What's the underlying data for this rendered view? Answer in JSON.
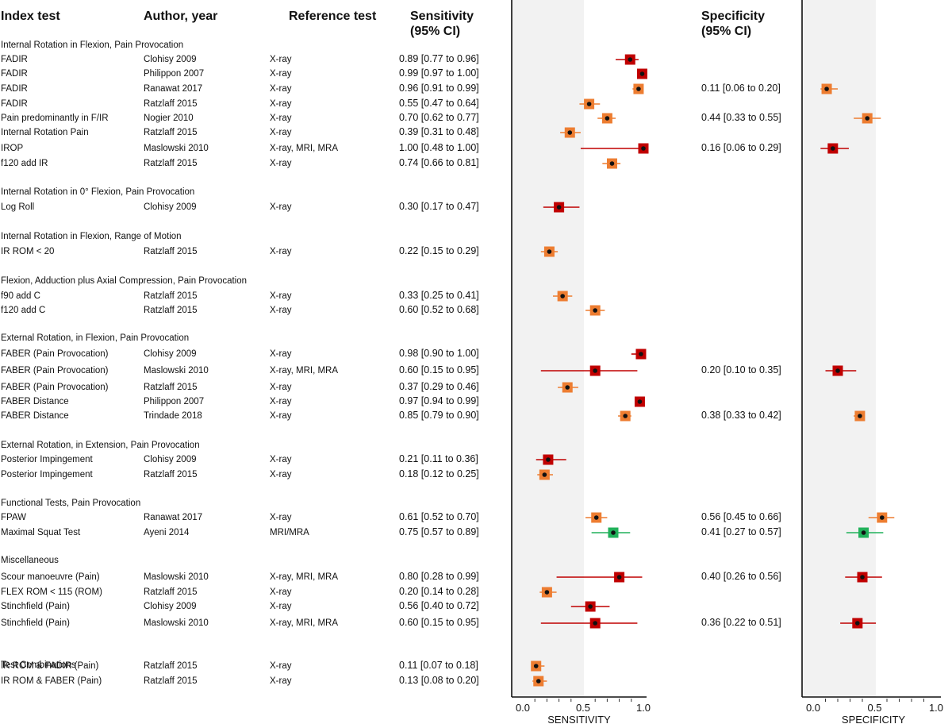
{
  "headers": {
    "index_test": "Index test",
    "author_year": "Author, year",
    "reference_test": "Reference test",
    "sensitivity": [
      "Sensitivity",
      "(95% CI)"
    ],
    "specificity": [
      "Specificity",
      "(95% CI)"
    ]
  },
  "axes": {
    "sensitivity": {
      "label": "SENSITIVITY",
      "range": [
        0,
        1
      ],
      "ticks": [
        "0.0",
        "0.5",
        "1.0"
      ]
    },
    "specificity": {
      "label": "SPECIFICITY",
      "range": [
        0,
        1
      ],
      "ticks": [
        "0.0",
        "0.5",
        "1.0"
      ]
    }
  },
  "colors": {
    "red": "#c00000",
    "orange": "#ed7d31",
    "green": "#21b15a",
    "band": "#f2f2f2"
  },
  "chart_data": {
    "type": "forest",
    "groups": [
      {
        "title": "Internal Rotation in Flexion, Pain Provocation",
        "rows": [
          {
            "test": "FADIR",
            "author": "Clohisy 2009",
            "ref": "X-ray",
            "sens_text": "0.89 [0.77 to 0.96]",
            "sens": 0.89,
            "sens_lo": 0.77,
            "sens_hi": 0.96,
            "spec_text": "",
            "color": "red"
          },
          {
            "test": "FADIR",
            "author": "Philippon 2007",
            "ref": "X-ray",
            "sens_text": "0.99 [0.97 to 1.00]",
            "sens": 0.99,
            "sens_lo": 0.97,
            "sens_hi": 1.0,
            "spec_text": "",
            "color": "red"
          },
          {
            "test": "FADIR",
            "author": "Ranawat 2017",
            "ref": "X-ray",
            "sens_text": "0.96 [0.91 to 0.99]",
            "sens": 0.96,
            "sens_lo": 0.91,
            "sens_hi": 0.99,
            "spec_text": "0.11 [0.06 to 0.20]",
            "spec": 0.11,
            "spec_lo": 0.06,
            "spec_hi": 0.2,
            "color": "orange"
          },
          {
            "test": "FADIR",
            "author": "Ratzlaff 2015",
            "ref": "X-ray",
            "sens_text": "0.55 [0.47 to 0.64]",
            "sens": 0.55,
            "sens_lo": 0.47,
            "sens_hi": 0.64,
            "spec_text": "",
            "color": "orange"
          },
          {
            "test": "Pain predominantly in F/IR",
            "author": "Nogier 2010",
            "ref": "X-ray",
            "sens_text": "0.70 [0.62 to 0.77]",
            "sens": 0.7,
            "sens_lo": 0.62,
            "sens_hi": 0.77,
            "spec_text": "0.44 [0.33 to 0.55]",
            "spec": 0.44,
            "spec_lo": 0.33,
            "spec_hi": 0.55,
            "color": "orange"
          },
          {
            "test": "Internal Rotation Pain",
            "author": "Ratzlaff 2015",
            "ref": "X-ray",
            "sens_text": "0.39 [0.31 to 0.48]",
            "sens": 0.39,
            "sens_lo": 0.31,
            "sens_hi": 0.48,
            "spec_text": "",
            "color": "orange"
          },
          {
            "test": "IROP",
            "author": "Maslowski 2010",
            "ref": "X-ray, MRI, MRA",
            "sens_text": "1.00 [0.48 to 1.00]",
            "sens": 1.0,
            "sens_lo": 0.48,
            "sens_hi": 1.0,
            "spec_text": "0.16 [0.06 to 0.29]",
            "spec": 0.16,
            "spec_lo": 0.06,
            "spec_hi": 0.29,
            "color": "red"
          },
          {
            "test": "f120 add IR",
            "author": "Ratzlaff 2015",
            "ref": "X-ray",
            "sens_text": "0.74 [0.66 to 0.81]",
            "sens": 0.74,
            "sens_lo": 0.66,
            "sens_hi": 0.81,
            "spec_text": "",
            "color": "orange"
          }
        ]
      },
      {
        "title": "Internal Rotation in 0° Flexion, Pain Provocation",
        "rows": [
          {
            "test": "Log Roll",
            "author": "Clohisy 2009",
            "ref": "X-ray",
            "sens_text": "0.30 [0.17 to 0.47]",
            "sens": 0.3,
            "sens_lo": 0.17,
            "sens_hi": 0.47,
            "spec_text": "",
            "color": "red"
          }
        ]
      },
      {
        "title": "Internal Rotation in Flexion, Range of Motion",
        "rows": [
          {
            "test": "IR ROM < 20",
            "author": "Ratzlaff 2015",
            "ref": "X-ray",
            "sens_text": "0.22 [0.15 to 0.29]",
            "sens": 0.22,
            "sens_lo": 0.15,
            "sens_hi": 0.29,
            "spec_text": "",
            "color": "orange"
          }
        ]
      },
      {
        "title": "Flexion, Adduction plus Axial Compression, Pain Provocation",
        "rows": [
          {
            "test": "f90 add C",
            "author": "Ratzlaff 2015",
            "ref": "X-ray",
            "sens_text": "0.33 [0.25 to 0.41]",
            "sens": 0.33,
            "sens_lo": 0.25,
            "sens_hi": 0.41,
            "spec_text": "",
            "color": "orange"
          },
          {
            "test": "f120 add C",
            "author": "Ratzlaff 2015",
            "ref": "X-ray",
            "sens_text": "0.60 [0.52 to 0.68]",
            "sens": 0.6,
            "sens_lo": 0.52,
            "sens_hi": 0.68,
            "spec_text": "",
            "color": "orange"
          }
        ]
      },
      {
        "title": "External Rotation, in Flexion, Pain Provocation",
        "rows": [
          {
            "test": "FABER (Pain Provocation)",
            "author": "Clohisy 2009",
            "ref": "X-ray",
            "sens_text": "0.98 [0.90 to 1.00]",
            "sens": 0.98,
            "sens_lo": 0.9,
            "sens_hi": 1.0,
            "spec_text": "",
            "color": "red"
          },
          {
            "test": "FABER (Pain Provocation)",
            "author": "Maslowski 2010",
            "ref": "X-ray, MRI, MRA",
            "sens_text": "0.60 [0.15 to 0.95]",
            "sens": 0.6,
            "sens_lo": 0.15,
            "sens_hi": 0.95,
            "spec_text": "0.20 [0.10 to 0.35]",
            "spec": 0.2,
            "spec_lo": 0.1,
            "spec_hi": 0.35,
            "color": "red"
          },
          {
            "test": "FABER (Pain Provocation)",
            "author": "Ratzlaff 2015",
            "ref": "X-ray",
            "sens_text": "0.37 [0.29 to 0.46]",
            "sens": 0.37,
            "sens_lo": 0.29,
            "sens_hi": 0.46,
            "spec_text": "",
            "color": "orange"
          },
          {
            "test": "FABER Distance",
            "author": "Philippon 2007",
            "ref": "X-ray",
            "sens_text": "0.97 [0.94 to 0.99]",
            "sens": 0.97,
            "sens_lo": 0.94,
            "sens_hi": 0.99,
            "spec_text": "",
            "color": "red"
          },
          {
            "test": "FABER Distance",
            "author": "Trindade 2018",
            "ref": "X-ray",
            "sens_text": "0.85 [0.79 to 0.90]",
            "sens": 0.85,
            "sens_lo": 0.79,
            "sens_hi": 0.9,
            "spec_text": "0.38 [0.33 to 0.42]",
            "spec": 0.38,
            "spec_lo": 0.33,
            "spec_hi": 0.42,
            "color": "orange"
          }
        ]
      },
      {
        "title": "External Rotation, in Extension, Pain Provocation",
        "rows": [
          {
            "test": "Posterior Impingement",
            "author": "Clohisy 2009",
            "ref": "X-ray",
            "sens_text": "0.21 [0.11 to 0.36]",
            "sens": 0.21,
            "sens_lo": 0.11,
            "sens_hi": 0.36,
            "spec_text": "",
            "color": "red"
          },
          {
            "test": "Posterior Impingement",
            "author": "Ratzlaff 2015",
            "ref": "X-ray",
            "sens_text": "0.18 [0.12 to 0.25]",
            "sens": 0.18,
            "sens_lo": 0.12,
            "sens_hi": 0.25,
            "spec_text": "",
            "color": "orange"
          }
        ]
      },
      {
        "title": "Functional Tests, Pain Provocation",
        "rows": [
          {
            "test": "FPAW",
            "author": "Ranawat 2017",
            "ref": "X-ray",
            "sens_text": "0.61 [0.52 to 0.70]",
            "sens": 0.61,
            "sens_lo": 0.52,
            "sens_hi": 0.7,
            "spec_text": "0.56 [0.45 to 0.66]",
            "spec": 0.56,
            "spec_lo": 0.45,
            "spec_hi": 0.66,
            "color": "orange"
          },
          {
            "test": "Maximal Squat Test",
            "author": "Ayeni 2014",
            "ref": "MRI/MRA",
            "sens_text": "0.75 [0.57 to 0.89]",
            "sens": 0.75,
            "sens_lo": 0.57,
            "sens_hi": 0.89,
            "spec_text": "0.41 [0.27 to 0.57]",
            "spec": 0.41,
            "spec_lo": 0.27,
            "spec_hi": 0.57,
            "color": "green"
          }
        ]
      },
      {
        "title": "Miscellaneous",
        "rows": [
          {
            "test": "Scour manoeuvre (Pain)",
            "author": "Maslowski 2010",
            "ref": "X-ray, MRI, MRA",
            "sens_text": "0.80 [0.28 to 0.99]",
            "sens": 0.8,
            "sens_lo": 0.28,
            "sens_hi": 0.99,
            "spec_text": "0.40 [0.26 to 0.56]",
            "spec": 0.4,
            "spec_lo": 0.26,
            "spec_hi": 0.56,
            "color": "red"
          },
          {
            "test": "FLEX ROM < 115 (ROM)",
            "author": "Ratzlaff 2015",
            "ref": "X-ray",
            "sens_text": "0.20 [0.14 to 0.28]",
            "sens": 0.2,
            "sens_lo": 0.14,
            "sens_hi": 0.28,
            "spec_text": "",
            "color": "orange"
          },
          {
            "test": "Stinchfield (Pain)",
            "author": "Clohisy 2009",
            "ref": "X-ray",
            "sens_text": "0.56 [0.40 to 0.72]",
            "sens": 0.56,
            "sens_lo": 0.4,
            "sens_hi": 0.72,
            "spec_text": "",
            "color": "red"
          },
          {
            "test": "Stinchfield (Pain)",
            "author": "Maslowski 2010",
            "ref": "X-ray, MRI, MRA",
            "sens_text": "0.60 [0.15 to 0.95]",
            "sens": 0.6,
            "sens_lo": 0.15,
            "sens_hi": 0.95,
            "spec_text": "0.36 [0.22 to 0.51]",
            "spec": 0.36,
            "spec_lo": 0.22,
            "spec_hi": 0.51,
            "color": "red"
          }
        ]
      },
      {
        "title": "Test Combinations",
        "rows": [
          {
            "test": "IR ROM & FADIR (Pain)",
            "author": "Ratzlaff 2015",
            "ref": "X-ray",
            "sens_text": "0.11 [0.07 to 0.18]",
            "sens": 0.11,
            "sens_lo": 0.07,
            "sens_hi": 0.18,
            "spec_text": "",
            "color": "orange"
          },
          {
            "test": "IR ROM & FABER (Pain)",
            "author": "Ratzlaff 2015",
            "ref": "X-ray",
            "sens_text": "0.13 [0.08 to 0.20]",
            "sens": 0.13,
            "sens_lo": 0.08,
            "sens_hi": 0.2,
            "spec_text": "",
            "color": "orange"
          }
        ]
      }
    ]
  }
}
